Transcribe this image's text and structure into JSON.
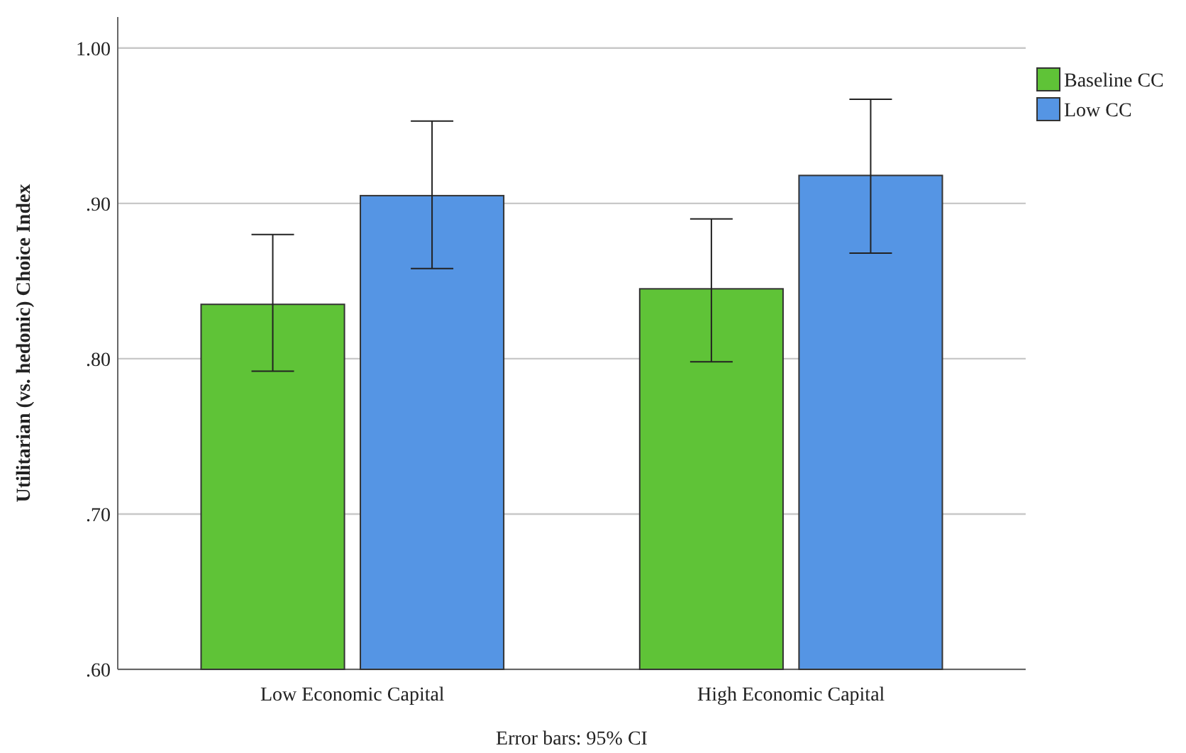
{
  "chart_data": {
    "type": "bar",
    "ylabel": "Utilitarian (vs. hedonic) Choice Index",
    "categories": [
      "Low Economic Capital",
      "High Economic Capital"
    ],
    "series": [
      {
        "name": "Baseline CC",
        "color": "#5fc337",
        "values": [
          0.835,
          0.845
        ],
        "errors": [
          [
            0.792,
            0.88
          ],
          [
            0.798,
            0.89
          ]
        ]
      },
      {
        "name": "Low CC",
        "color": "#5595e4",
        "values": [
          0.905,
          0.918
        ],
        "errors": [
          [
            0.858,
            0.953
          ],
          [
            0.868,
            0.967
          ]
        ]
      }
    ],
    "ylim": [
      0.6,
      1.02
    ],
    "yticks": [
      {
        "value": 0.6,
        "label": ".60"
      },
      {
        "value": 0.7,
        "label": ".70"
      },
      {
        "value": 0.8,
        "label": ".80"
      },
      {
        "value": 0.9,
        "label": ".90"
      },
      {
        "value": 1.0,
        "label": "1.00"
      }
    ],
    "grid": "y",
    "legend": "top right",
    "annotations": [
      "Error bars: 95% CI"
    ]
  }
}
